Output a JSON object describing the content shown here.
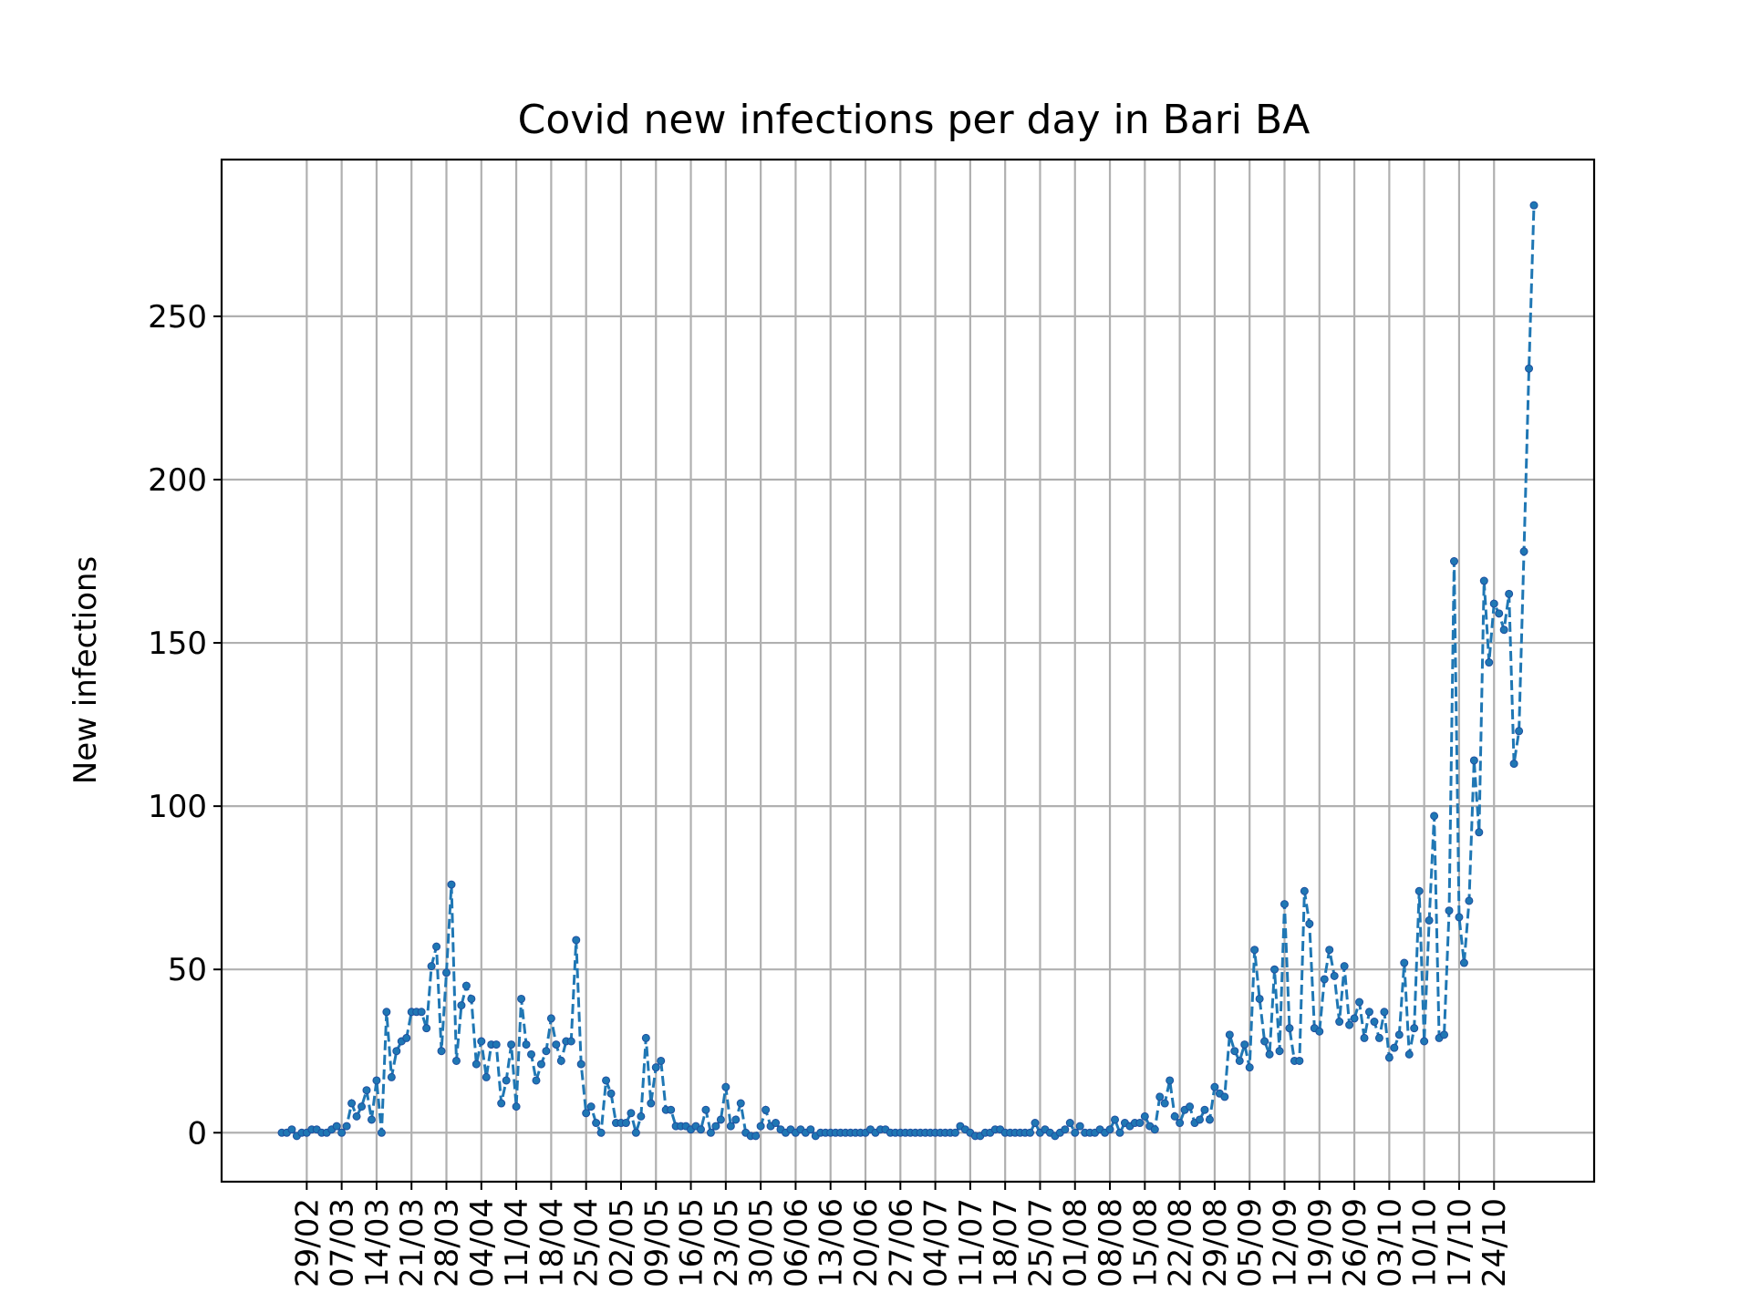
{
  "chart_data": {
    "type": "line",
    "title": "Covid new infections per day in Bari BA",
    "xlabel": "",
    "ylabel": "New infections",
    "x_start": "24/02",
    "x_end": "24/10",
    "xtick_labels": [
      "29/02",
      "07/03",
      "14/03",
      "21/03",
      "28/03",
      "04/04",
      "11/04",
      "18/04",
      "25/04",
      "02/05",
      "09/05",
      "16/05",
      "23/05",
      "30/05",
      "06/06",
      "13/06",
      "20/06",
      "27/06",
      "04/07",
      "11/07",
      "18/07",
      "25/07",
      "01/08",
      "08/08",
      "15/08",
      "22/08",
      "29/08",
      "05/09",
      "12/09",
      "19/09",
      "26/09",
      "03/10",
      "10/10",
      "17/10",
      "24/10"
    ],
    "yticks": [
      0,
      50,
      100,
      150,
      200,
      250
    ],
    "ylim": [
      -15,
      298
    ],
    "grid": true,
    "series": [
      {
        "color": "#1f77b4",
        "values": [
          0,
          0,
          1,
          -1,
          0,
          0,
          1,
          1,
          0,
          0,
          1,
          2,
          0,
          2,
          9,
          5,
          8,
          13,
          4,
          16,
          0,
          37,
          17,
          25,
          28,
          29,
          37,
          37,
          37,
          32,
          51,
          57,
          25,
          49,
          76,
          22,
          39,
          45,
          41,
          21,
          28,
          17,
          27,
          27,
          9,
          16,
          27,
          8,
          41,
          27,
          24,
          16,
          21,
          25,
          35,
          27,
          22,
          28,
          28,
          59,
          21,
          6,
          8,
          3,
          0,
          16,
          12,
          3,
          3,
          3,
          6,
          0,
          5,
          29,
          9,
          20,
          22,
          7,
          7,
          2,
          2,
          2,
          1,
          2,
          1,
          7,
          0,
          2,
          4,
          14,
          2,
          4,
          9,
          0,
          -1,
          -1,
          2,
          7,
          2,
          3,
          1,
          0,
          1,
          0,
          1,
          0,
          1,
          -1,
          0,
          0,
          0,
          0,
          0,
          0,
          0,
          0,
          0,
          0,
          1,
          0,
          1,
          1,
          0,
          0,
          0,
          0,
          0,
          0,
          0,
          0,
          0,
          0,
          0,
          0,
          0,
          0,
          2,
          1,
          0,
          -1,
          -1,
          0,
          0,
          1,
          1,
          0,
          0,
          0,
          0,
          0,
          0,
          3,
          0,
          1,
          0,
          -1,
          0,
          1,
          3,
          0,
          2,
          0,
          0,
          0,
          1,
          0,
          1,
          4,
          0,
          3,
          2,
          3,
          3,
          5,
          2,
          1,
          11,
          9,
          16,
          5,
          3,
          7,
          8,
          3,
          4,
          7,
          4,
          14,
          12,
          11,
          30,
          25,
          22,
          27,
          20,
          56,
          41,
          28,
          24,
          50,
          25,
          70,
          32,
          22,
          22,
          74,
          64,
          32,
          31,
          47,
          56,
          48,
          34,
          51,
          33,
          35,
          40,
          29,
          37,
          34,
          29,
          37,
          23,
          26,
          30,
          52,
          24,
          32,
          74,
          28,
          65,
          97,
          29,
          30,
          68,
          175,
          66,
          52,
          71,
          114,
          92,
          169,
          144,
          162,
          159,
          154,
          165,
          113,
          123,
          178,
          234,
          284
        ]
      }
    ]
  }
}
